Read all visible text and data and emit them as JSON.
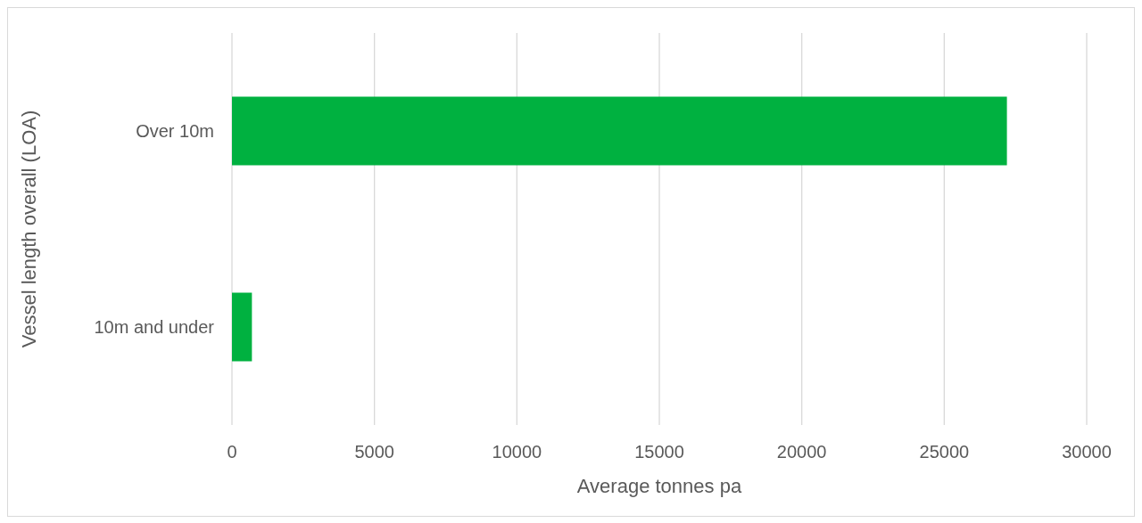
{
  "chart_data": {
    "type": "bar",
    "orientation": "horizontal",
    "xlabel": "Average tonnes pa",
    "ylabel": "Vessel length overall (LOA)",
    "categories": [
      "Over 10m",
      "10m and under"
    ],
    "values": [
      27200,
      700
    ],
    "color": "#00b140",
    "xlim": [
      0,
      30000
    ],
    "xticks": [
      0,
      5000,
      10000,
      15000,
      20000,
      25000,
      30000
    ],
    "grid": "x"
  }
}
